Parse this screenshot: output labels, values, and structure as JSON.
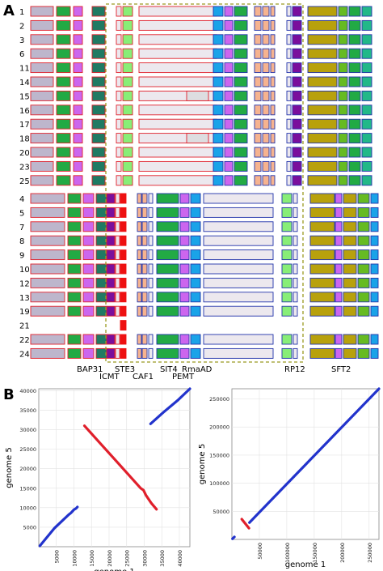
{
  "panel_a": {
    "label": "A",
    "row_labels_group1": [
      "1",
      "2",
      "3",
      "6",
      "11",
      "14",
      "15",
      "16",
      "17",
      "18",
      "20",
      "23",
      "25"
    ],
    "row_labels_group2": [
      "4",
      "5",
      "7",
      "8",
      "9",
      "10",
      "12",
      "13",
      "19",
      "21",
      "22",
      "24"
    ],
    "gene_labels_top_row": [
      "BAP31",
      "STE3",
      "CAF1",
      "SIT4",
      "RmaAD",
      "RP12",
      "SFT2"
    ],
    "gene_labels_bottom_row": [
      "ICMT",
      "PEMT"
    ],
    "colors": {
      "lavender_block": "#bdb6cc",
      "green": "#22aa44",
      "violet": "#cc66ee",
      "teal": "#1f7a63",
      "light_green": "#88ee77",
      "pale": "#ece8ee",
      "blue": "#1aa3e8",
      "salmon": "#f6b38f",
      "purple": "#7a0f9c",
      "olive": "#b8a10c",
      "lime": "#66bb22",
      "red_outline": "#e01f2b",
      "blue_outline": "#2233aa",
      "dashed_box": "#9a9a20"
    }
  },
  "panel_b": {
    "label": "B"
  },
  "chart_data": [
    {
      "type": "scatter",
      "xlabel": "genome 1",
      "ylabel": "genome 5",
      "x_ticks": [
        "5000",
        "10000",
        "15000",
        "20000",
        "25000",
        "30000",
        "35000",
        "40000"
      ],
      "y_ticks": [
        "5000",
        "10000",
        "15000",
        "20000",
        "25000",
        "30000",
        "35000",
        "40000"
      ],
      "xlim": [
        0,
        43000
      ],
      "ylim": [
        0,
        40500
      ],
      "grid": true,
      "series": [
        {
          "color": "#2233cc",
          "points": [
            [
              300,
              200
            ],
            [
              4500,
              4800
            ],
            [
              8500,
              8200
            ],
            [
              9200,
              8700
            ],
            [
              10000,
              9500
            ],
            [
              10600,
              9800
            ],
            [
              11000,
              10200
            ]
          ]
        },
        {
          "color": "#2233cc",
          "points": [
            [
              31800,
              31500
            ],
            [
              35500,
              34500
            ],
            [
              39500,
              37500
            ],
            [
              43000,
              40500
            ]
          ]
        },
        {
          "color": "#e01f2b",
          "points": [
            [
              13000,
              31000
            ],
            [
              17500,
              26500
            ],
            [
              22000,
              22000
            ],
            [
              26500,
              17500
            ],
            [
              29000,
              15000
            ],
            [
              29800,
              14500
            ],
            [
              30500,
              13200
            ],
            [
              32000,
              11200
            ],
            [
              33500,
              9600
            ]
          ]
        }
      ]
    },
    {
      "type": "scatter",
      "xlabel": "genome 1",
      "ylabel": "genome 5",
      "x_ticks": [
        "50000",
        "100000",
        "150000",
        "200000",
        "250000"
      ],
      "y_ticks": [
        "50000",
        "100000",
        "150000",
        "200000",
        "250000"
      ],
      "xlim": [
        0,
        268000
      ],
      "ylim": [
        0,
        268000
      ],
      "grid": true,
      "series": [
        {
          "color": "#2233cc",
          "points": [
            [
              1000,
              1000
            ],
            [
              4500,
              4500
            ]
          ]
        },
        {
          "color": "#2233cc",
          "points": [
            [
              32000,
              30000
            ],
            [
              268000,
              268000
            ]
          ]
        },
        {
          "color": "#e01f2b",
          "points": [
            [
              18000,
              36000
            ],
            [
              31000,
              20000
            ]
          ]
        }
      ]
    }
  ]
}
